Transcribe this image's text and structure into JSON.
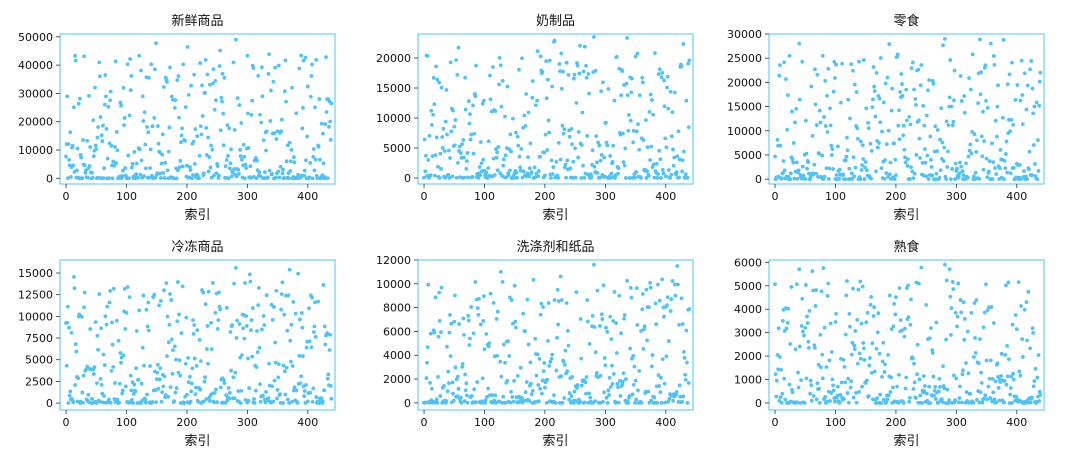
{
  "chart_data": [
    {
      "type": "scatter",
      "title": "新鲜商品",
      "xlabel": "索引",
      "ylabel": "",
      "xlim": [
        -10,
        445
      ],
      "ylim": [
        -2000,
        51000
      ],
      "xticks": [
        0,
        100,
        200,
        300,
        400
      ],
      "yticks": [
        0,
        10000,
        20000,
        30000,
        40000,
        50000
      ],
      "ytick_labels": [
        "0",
        "10000",
        "20000",
        "30000",
        "40000",
        "50000"
      ],
      "ymax_approx": 49000,
      "grid": false,
      "color": "#4fc3f7",
      "n_points": 440,
      "seed": 11
    },
    {
      "type": "scatter",
      "title": "奶制品",
      "xlabel": "索引",
      "ylabel": "",
      "xlim": [
        -10,
        445
      ],
      "ylim": [
        -1000,
        24000
      ],
      "xticks": [
        0,
        100,
        200,
        300,
        400
      ],
      "yticks": [
        0,
        5000,
        10000,
        15000,
        20000
      ],
      "ytick_labels": [
        "0",
        "5000",
        "10000",
        "15000",
        "20000"
      ],
      "ymax_approx": 23500,
      "grid": false,
      "color": "#4fc3f7",
      "n_points": 440,
      "seed": 23
    },
    {
      "type": "scatter",
      "title": "零食",
      "xlabel": "索引",
      "ylabel": "",
      "xlim": [
        -10,
        445
      ],
      "ylim": [
        -1000,
        30000
      ],
      "xticks": [
        0,
        100,
        200,
        300,
        400
      ],
      "yticks": [
        0,
        5000,
        10000,
        15000,
        20000,
        25000,
        30000
      ],
      "ytick_labels": [
        "0",
        "5000",
        "10000",
        "15000",
        "20000",
        "25000",
        "30000"
      ],
      "ymax_approx": 29000,
      "grid": false,
      "color": "#4fc3f7",
      "n_points": 440,
      "seed": 37
    },
    {
      "type": "scatter",
      "title": "冷冻商品",
      "xlabel": "索引",
      "ylabel": "",
      "xlim": [
        -10,
        445
      ],
      "ylim": [
        -800,
        16500
      ],
      "xticks": [
        0,
        100,
        200,
        300,
        400
      ],
      "yticks": [
        0,
        2500,
        5000,
        7500,
        10000,
        12500,
        15000
      ],
      "ytick_labels": [
        "0",
        "2500",
        "5000",
        "7500",
        "10000",
        "12500",
        "15000"
      ],
      "ymax_approx": 15600,
      "grid": false,
      "color": "#4fc3f7",
      "n_points": 440,
      "seed": 41
    },
    {
      "type": "scatter",
      "title": "洗涤剂和纸品",
      "xlabel": "索引",
      "ylabel": "",
      "xlim": [
        -10,
        445
      ],
      "ylim": [
        -600,
        12000
      ],
      "xticks": [
        0,
        100,
        200,
        300,
        400
      ],
      "yticks": [
        0,
        2000,
        4000,
        6000,
        8000,
        10000,
        12000
      ],
      "ytick_labels": [
        "0",
        "2000",
        "4000",
        "6000",
        "8000",
        "10000",
        "12000"
      ],
      "ymax_approx": 11600,
      "grid": false,
      "color": "#4fc3f7",
      "n_points": 440,
      "seed": 53
    },
    {
      "type": "scatter",
      "title": "熟食",
      "xlabel": "索引",
      "ylabel": "",
      "xlim": [
        -10,
        445
      ],
      "ylim": [
        -300,
        6100
      ],
      "xticks": [
        0,
        100,
        200,
        300,
        400
      ],
      "yticks": [
        0,
        1000,
        2000,
        3000,
        4000,
        5000,
        6000
      ],
      "ytick_labels": [
        "0",
        "1000",
        "2000",
        "3000",
        "4000",
        "5000",
        "6000"
      ],
      "ymax_approx": 5900,
      "grid": false,
      "color": "#4fc3f7",
      "n_points": 440,
      "seed": 67
    }
  ]
}
